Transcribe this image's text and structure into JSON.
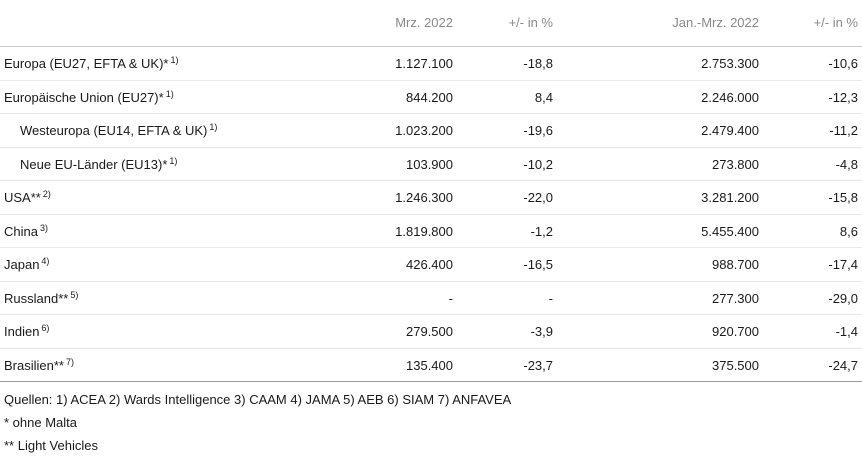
{
  "header": {
    "col1": "Mrz. 2022",
    "col2": "+/- in %",
    "col3": "Jan.-Mrz. 2022",
    "col4": "+/- in %"
  },
  "rows": [
    {
      "label": "Europa (EU27, EFTA & UK)*",
      "note": "1)",
      "mrz": "1.127.100",
      "chg1": "-18,8",
      "ytd": "2.753.300",
      "chg2": "-10,6"
    },
    {
      "label": "Europäische Union (EU27)*",
      "note": "1)",
      "mrz": "844.200",
      "chg1": "8,4",
      "ytd": "2.246.000",
      "chg2": "-12,3"
    },
    {
      "label": "Westeuropa (EU14, EFTA & UK)",
      "note": "1)",
      "mrz": "1.023.200",
      "chg1": "-19,6",
      "ytd": "2.479.400",
      "chg2": "-11,2"
    },
    {
      "label": "Neue EU-Länder (EU13)*",
      "note": "1)",
      "mrz": "103.900",
      "chg1": "-10,2",
      "ytd": "273.800",
      "chg2": "-4,8"
    },
    {
      "label": "USA**",
      "note": "2)",
      "mrz": "1.246.300",
      "chg1": "-22,0",
      "ytd": "3.281.200",
      "chg2": "-15,8"
    },
    {
      "label": "China",
      "note": "3)",
      "mrz": "1.819.800",
      "chg1": "-1,2",
      "ytd": "5.455.400",
      "chg2": "8,6"
    },
    {
      "label": "Japan",
      "note": "4)",
      "mrz": "426.400",
      "chg1": "-16,5",
      "ytd": "988.700",
      "chg2": "-17,4"
    },
    {
      "label": "Russland**",
      "note": "5)",
      "mrz": "-",
      "chg1": "-",
      "ytd": "277.300",
      "chg2": "-29,0"
    },
    {
      "label": "Indien",
      "note": "6)",
      "mrz": "279.500",
      "chg1": "-3,9",
      "ytd": "920.700",
      "chg2": "-1,4"
    },
    {
      "label": "Brasilien**",
      "note": "7)",
      "mrz": "135.400",
      "chg1": "-23,7",
      "ytd": "375.500",
      "chg2": "-24,7"
    }
  ],
  "footer": {
    "sources": "Quellen: 1) ACEA  2) Wards Intelligence  3) CAAM  4) JAMA  5) AEB  6) SIAM  7) ANFAVEA",
    "note1": "* ohne Malta",
    "note2": "** Light Vehicles"
  }
}
